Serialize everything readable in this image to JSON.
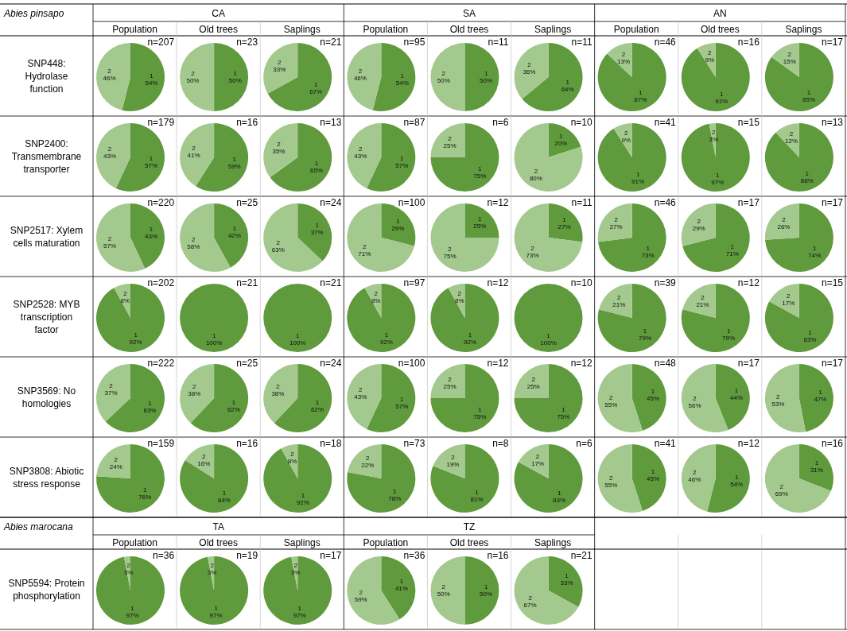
{
  "chart_data": [
    {
      "type": "other",
      "title": "Abies pinsapo",
      "annotations": [
        "CA",
        "SA",
        "AN"
      ],
      "categories": [
        "Population",
        "Old trees",
        "Saplings",
        "Population",
        "Old trees",
        "Saplings",
        "Population",
        "Old trees",
        "Saplings"
      ],
      "y_categories": [
        "SNP448: Hydrolase function",
        "SNP2400: Transmembrane transporter",
        "SNP2517: Xylem cells maturation",
        "SNP2528: MYB transcription factor",
        "SNP3569: No homologies",
        "SNP3808: Abiotic stress response"
      ]
    },
    {
      "type": "pie",
      "categories": [
        "1",
        "2"
      ],
      "colors": [
        "#5f9a3c",
        "#a3c98e"
      ],
      "annotations": [
        "n=207",
        "n=23",
        "n=21",
        "n=95",
        "n=11",
        "n=11",
        "n=46",
        "n=16",
        "n=17"
      ],
      "series": [
        {
          "values": [
            54,
            46
          ],
          "value_labels": [
            "54%",
            "46%"
          ]
        },
        {
          "values": [
            50,
            50
          ],
          "value_labels": [
            "50%",
            "50%"
          ]
        },
        {
          "values": [
            67,
            33
          ],
          "value_labels": [
            "67%",
            "33%"
          ]
        },
        {
          "values": [
            54,
            46
          ],
          "value_labels": [
            "54%",
            "46%"
          ]
        },
        {
          "values": [
            50,
            50
          ],
          "value_labels": [
            "50%",
            "50%"
          ]
        },
        {
          "values": [
            64,
            36
          ],
          "value_labels": [
            "64%",
            "36%"
          ]
        },
        {
          "values": [
            87,
            13
          ],
          "value_labels": [
            "87%",
            "13%"
          ]
        },
        {
          "values": [
            91,
            9
          ],
          "value_labels": [
            "91%",
            "9%"
          ]
        },
        {
          "values": [
            85,
            15
          ],
          "value_labels": [
            "85%",
            "15%"
          ]
        }
      ]
    },
    {
      "type": "pie",
      "categories": [
        "1",
        "2"
      ],
      "colors": [
        "#5f9a3c",
        "#a3c98e"
      ],
      "annotations": [
        "n=179",
        "n=16",
        "n=13",
        "n=87",
        "n=6",
        "n=10",
        "n=41",
        "n=15",
        "n=13"
      ],
      "series": [
        {
          "values": [
            57,
            43
          ],
          "value_labels": [
            "57%",
            "43%"
          ]
        },
        {
          "values": [
            59,
            41
          ],
          "value_labels": [
            "59%",
            "41%"
          ]
        },
        {
          "values": [
            65,
            35
          ],
          "value_labels": [
            "65%",
            "35%"
          ]
        },
        {
          "values": [
            57,
            43
          ],
          "value_labels": [
            "57%",
            "43%"
          ]
        },
        {
          "values": [
            75,
            25
          ],
          "value_labels": [
            "75%",
            "25%"
          ]
        },
        {
          "values": [
            20,
            80
          ],
          "value_labels": [
            "20%",
            "80%"
          ]
        },
        {
          "values": [
            91,
            9
          ],
          "value_labels": [
            "91%",
            "9%"
          ]
        },
        {
          "values": [
            97,
            3
          ],
          "value_labels": [
            "97%",
            "3%"
          ]
        },
        {
          "values": [
            88,
            12
          ],
          "value_labels": [
            "88%",
            "12%"
          ]
        }
      ]
    },
    {
      "type": "pie",
      "categories": [
        "1",
        "2"
      ],
      "colors": [
        "#5f9a3c",
        "#a3c98e"
      ],
      "annotations": [
        "n=220",
        "n=25",
        "n=24",
        "n=100",
        "n=12",
        "n=11",
        "n=46",
        "n=17",
        "n=17"
      ],
      "series": [
        {
          "values": [
            43,
            57
          ],
          "value_labels": [
            "43%",
            "57%"
          ]
        },
        {
          "values": [
            42,
            58
          ],
          "value_labels": [
            "42%",
            "58%"
          ]
        },
        {
          "values": [
            37,
            63
          ],
          "value_labels": [
            "37%",
            "63%"
          ]
        },
        {
          "values": [
            29,
            71
          ],
          "value_labels": [
            "29%",
            "71%"
          ]
        },
        {
          "values": [
            25,
            75
          ],
          "value_labels": [
            "25%",
            "75%"
          ]
        },
        {
          "values": [
            27,
            73
          ],
          "value_labels": [
            "27%",
            "73%"
          ]
        },
        {
          "values": [
            73,
            27
          ],
          "value_labels": [
            "73%",
            "27%"
          ]
        },
        {
          "values": [
            71,
            29
          ],
          "value_labels": [
            "71%",
            "29%"
          ]
        },
        {
          "values": [
            74,
            26
          ],
          "value_labels": [
            "74%",
            "26%"
          ]
        }
      ]
    },
    {
      "type": "pie",
      "categories": [
        "1",
        "2"
      ],
      "colors": [
        "#5f9a3c",
        "#a3c98e"
      ],
      "annotations": [
        "n=202",
        "n=21",
        "n=21",
        "n=97",
        "n=12",
        "n=10",
        "n=39",
        "n=12",
        "n=15"
      ],
      "series": [
        {
          "values": [
            92,
            8
          ],
          "value_labels": [
            "92%",
            "8%"
          ]
        },
        {
          "values": [
            100,
            null
          ],
          "value_labels": [
            "100%",
            null
          ]
        },
        {
          "values": [
            100,
            null
          ],
          "value_labels": [
            "100%",
            null
          ]
        },
        {
          "values": [
            92,
            8
          ],
          "value_labels": [
            "92%",
            "8%"
          ]
        },
        {
          "values": [
            92,
            8
          ],
          "value_labels": [
            "92%",
            "8%"
          ]
        },
        {
          "values": [
            100,
            null
          ],
          "value_labels": [
            "100%",
            null
          ]
        },
        {
          "values": [
            79,
            21
          ],
          "value_labels": [
            "79%",
            "21%"
          ]
        },
        {
          "values": [
            79,
            21
          ],
          "value_labels": [
            "79%",
            "21%"
          ]
        },
        {
          "values": [
            83,
            17
          ],
          "value_labels": [
            "83%",
            "17%"
          ]
        }
      ]
    },
    {
      "type": "pie",
      "categories": [
        "1",
        "2"
      ],
      "colors": [
        "#5f9a3c",
        "#a3c98e"
      ],
      "annotations": [
        "n=222",
        "n=25",
        "n=24",
        "n=100",
        "n=12",
        "n=12",
        "n=48",
        "n=17",
        "n=17"
      ],
      "series": [
        {
          "values": [
            63,
            37
          ],
          "value_labels": [
            "63%",
            "37%"
          ]
        },
        {
          "values": [
            62,
            38
          ],
          "value_labels": [
            "62%",
            "38%"
          ]
        },
        {
          "values": [
            62,
            38
          ],
          "value_labels": [
            "62%",
            "38%"
          ]
        },
        {
          "values": [
            57,
            43
          ],
          "value_labels": [
            "57%",
            "43%"
          ]
        },
        {
          "values": [
            75,
            25
          ],
          "value_labels": [
            "75%",
            "25%"
          ]
        },
        {
          "values": [
            75,
            25
          ],
          "value_labels": [
            "75%",
            "25%"
          ]
        },
        {
          "values": [
            45,
            55
          ],
          "value_labels": [
            "45%",
            "55%"
          ]
        },
        {
          "values": [
            44,
            56
          ],
          "value_labels": [
            "44%",
            "56%"
          ]
        },
        {
          "values": [
            47,
            53
          ],
          "value_labels": [
            "47%",
            "53%"
          ]
        }
      ]
    },
    {
      "type": "pie",
      "categories": [
        "1",
        "2"
      ],
      "colors": [
        "#5f9a3c",
        "#a3c98e"
      ],
      "annotations": [
        "n=159",
        "n=16",
        "n=18",
        "n=73",
        "n=8",
        "n=6",
        "n=41",
        "n=12",
        "n=16"
      ],
      "series": [
        {
          "values": [
            76,
            24
          ],
          "value_labels": [
            "76%",
            "24%"
          ]
        },
        {
          "values": [
            84,
            16
          ],
          "value_labels": [
            "84%",
            "16%"
          ]
        },
        {
          "values": [
            92,
            8
          ],
          "value_labels": [
            "92%",
            "8%"
          ]
        },
        {
          "values": [
            78,
            22
          ],
          "value_labels": [
            "78%",
            "22%"
          ]
        },
        {
          "values": [
            81,
            19
          ],
          "value_labels": [
            "81%",
            "19%"
          ]
        },
        {
          "values": [
            83,
            17
          ],
          "value_labels": [
            "83%",
            "17%"
          ]
        },
        {
          "values": [
            45,
            55
          ],
          "value_labels": [
            "45%",
            "55%"
          ]
        },
        {
          "values": [
            54,
            46
          ],
          "value_labels": [
            "54%",
            "46%"
          ]
        },
        {
          "values": [
            31,
            69
          ],
          "value_labels": [
            "31%",
            "69%"
          ]
        }
      ]
    },
    {
      "type": "other",
      "title": "Abies marocana",
      "annotations": [
        "TA",
        "TZ"
      ],
      "categories": [
        "Population",
        "Old trees",
        "Saplings",
        "Population",
        "Old trees",
        "Saplings"
      ],
      "y_categories": [
        "SNP5594: Protein phosphorylation"
      ]
    },
    {
      "type": "pie",
      "categories": [
        "1",
        "2"
      ],
      "colors": [
        "#5f9a3c",
        "#a3c98e"
      ],
      "annotations": [
        "n=36",
        "n=19",
        "n=17",
        "n=36",
        "n=16",
        "n=21"
      ],
      "series": [
        {
          "values": [
            97,
            3
          ],
          "value_labels": [
            "97%",
            "3%"
          ]
        },
        {
          "values": [
            97,
            3
          ],
          "value_labels": [
            "97%",
            "3%"
          ]
        },
        {
          "values": [
            97,
            3
          ],
          "value_labels": [
            "97%",
            "3%"
          ]
        },
        {
          "values": [
            41,
            59
          ],
          "value_labels": [
            "41%",
            "59%"
          ]
        },
        {
          "values": [
            50,
            50
          ],
          "value_labels": [
            "50%",
            "50%"
          ]
        },
        {
          "values": [
            33,
            67
          ],
          "value_labels": [
            "33%",
            "67%"
          ]
        }
      ]
    }
  ]
}
